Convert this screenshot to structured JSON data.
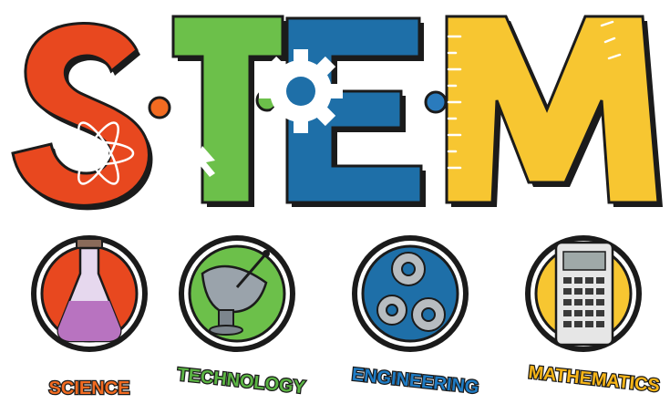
{
  "logo": {
    "letters": [
      "S",
      "T",
      "E",
      "M"
    ],
    "lettering": "S·T·E·M",
    "colors": {
      "science": "#e8481f",
      "technology": "#6cc04a",
      "engineering": "#1e6fa8",
      "mathematics": "#f7c631",
      "outline": "#1b1b1b",
      "dot_orange": "#f26b21",
      "dot_green": "#6cc04a",
      "dot_blue": "#2a7bbd"
    }
  },
  "subjects": [
    {
      "label": "SCIENCE",
      "icon": "flask-icon",
      "circle_color": "#e8481f",
      "label_color": "#f26b21"
    },
    {
      "label": "TECHNOLOGY",
      "icon": "satellite-dish-icon",
      "circle_color": "#6cc04a",
      "label_color": "#5bb443"
    },
    {
      "label": "ENGINEERING",
      "icon": "gears-icon",
      "circle_color": "#1e6fa8",
      "label_color": "#1e7bc4"
    },
    {
      "label": "MATHEMATICS",
      "icon": "calculator-icon",
      "circle_color": "#f7c631",
      "label_color": "#f7b517"
    }
  ]
}
